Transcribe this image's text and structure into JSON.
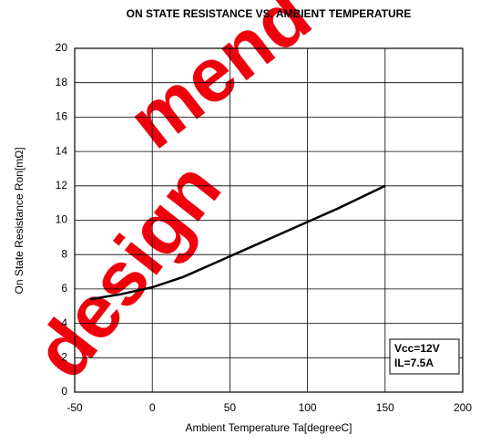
{
  "chart_data": {
    "type": "line",
    "title": "ON STATE RESISTANCE VS. AMBIENT TEMPERATURE",
    "x_label": "Ambient Temperature   Ta[degreeC]",
    "y_label": "On State Resistance   Ron[mΩ]",
    "x": [
      -40,
      -20,
      0,
      20,
      40,
      60,
      80,
      100,
      120,
      150
    ],
    "series": [
      {
        "color": "#000000",
        "values": [
          5.4,
          5.7,
          6.1,
          6.7,
          7.5,
          8.3,
          9.1,
          9.9,
          10.7,
          12.0
        ]
      }
    ],
    "xlim": [
      -50,
      200
    ],
    "xticks": [
      -50,
      0,
      50,
      100,
      150,
      200
    ],
    "ylim": [
      0,
      20
    ],
    "yticks": [
      0,
      2,
      4,
      6,
      8,
      10,
      12,
      14,
      16,
      18,
      20
    ],
    "grid": true,
    "annotations": [
      "Vcc=12V",
      "IL=7.5A"
    ],
    "watermark": [
      "mend",
      "design"
    ]
  }
}
